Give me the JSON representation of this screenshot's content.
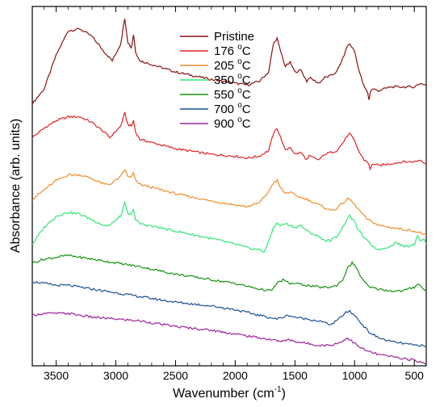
{
  "chart_data": {
    "type": "line",
    "xlabel": "Wavenumber (cm",
    "xlabel_sup": "-1",
    "xlabel_close": ")",
    "ylabel": "Absorbance (arb. units)",
    "xlim": [
      3700,
      400
    ],
    "x_reversed": true,
    "y_ticks_shown": false,
    "x_ticks": [
      3500,
      3000,
      2500,
      2000,
      1500,
      1000,
      500
    ],
    "x_tick_labels": [
      "3500",
      "3000",
      "2500",
      "2000",
      "1500",
      "1000",
      "500"
    ],
    "legend_position": "top-center",
    "grid": false,
    "series": [
      {
        "name": "Pristine",
        "name_sup": "",
        "color": "#8b1010",
        "offset": 6,
        "points": [
          [
            3700,
            -0.6
          ],
          [
            3600,
            -0.2
          ],
          [
            3500,
            0.7
          ],
          [
            3400,
            1.35
          ],
          [
            3300,
            1.4
          ],
          [
            3200,
            1.2
          ],
          [
            3100,
            0.8
          ],
          [
            3030,
            0.55
          ],
          [
            2960,
            1.0
          ],
          [
            2925,
            1.7
          ],
          [
            2900,
            1.05
          ],
          [
            2870,
            0.9
          ],
          [
            2852,
            1.25
          ],
          [
            2835,
            0.8
          ],
          [
            2800,
            0.55
          ],
          [
            2500,
            0.25
          ],
          [
            2200,
            0.05
          ],
          [
            2000,
            -0.05
          ],
          [
            1900,
            -0.1
          ],
          [
            1800,
            0.0
          ],
          [
            1720,
            0.25
          ],
          [
            1680,
            1.0
          ],
          [
            1650,
            1.15
          ],
          [
            1620,
            0.8
          ],
          [
            1580,
            0.4
          ],
          [
            1540,
            0.5
          ],
          [
            1500,
            0.25
          ],
          [
            1450,
            0.3
          ],
          [
            1400,
            0.0
          ],
          [
            1380,
            0.1
          ],
          [
            1300,
            -0.05
          ],
          [
            1250,
            0.1
          ],
          [
            1200,
            0.15
          ],
          [
            1150,
            0.25
          ],
          [
            1100,
            0.6
          ],
          [
            1060,
            0.95
          ],
          [
            1040,
            1.0
          ],
          [
            1000,
            0.8
          ],
          [
            960,
            0.25
          ],
          [
            920,
            -0.15
          ],
          [
            890,
            -0.3
          ],
          [
            880,
            -0.5
          ],
          [
            870,
            -0.3
          ],
          [
            850,
            -0.2
          ],
          [
            800,
            -0.25
          ],
          [
            700,
            -0.15
          ],
          [
            600,
            -0.15
          ],
          [
            500,
            -0.15
          ],
          [
            450,
            -0.05
          ],
          [
            400,
            -0.1
          ]
        ]
      },
      {
        "name": "176 ",
        "name_sup": "o",
        "name_after": "C",
        "color": "#e32222",
        "offset": 4.6,
        "points": [
          [
            3700,
            -0.1
          ],
          [
            3600,
            0.15
          ],
          [
            3500,
            0.35
          ],
          [
            3400,
            0.45
          ],
          [
            3300,
            0.45
          ],
          [
            3200,
            0.3
          ],
          [
            3100,
            0.05
          ],
          [
            3050,
            -0.1
          ],
          [
            2960,
            0.2
          ],
          [
            2925,
            0.55
          ],
          [
            2900,
            0.25
          ],
          [
            2870,
            0.2
          ],
          [
            2852,
            0.35
          ],
          [
            2835,
            0.05
          ],
          [
            2800,
            -0.15
          ],
          [
            2500,
            -0.4
          ],
          [
            2200,
            -0.55
          ],
          [
            2000,
            -0.6
          ],
          [
            1900,
            -0.65
          ],
          [
            1800,
            -0.6
          ],
          [
            1720,
            -0.45
          ],
          [
            1680,
            0.0
          ],
          [
            1650,
            0.15
          ],
          [
            1620,
            -0.1
          ],
          [
            1580,
            -0.45
          ],
          [
            1540,
            -0.35
          ],
          [
            1500,
            -0.55
          ],
          [
            1450,
            -0.5
          ],
          [
            1400,
            -0.7
          ],
          [
            1380,
            -0.6
          ],
          [
            1300,
            -0.7
          ],
          [
            1250,
            -0.55
          ],
          [
            1200,
            -0.5
          ],
          [
            1150,
            -0.45
          ],
          [
            1100,
            -0.25
          ],
          [
            1060,
            -0.05
          ],
          [
            1040,
            0.0
          ],
          [
            1000,
            -0.2
          ],
          [
            960,
            -0.5
          ],
          [
            920,
            -0.7
          ],
          [
            890,
            -0.75
          ],
          [
            870,
            -0.95
          ],
          [
            850,
            -0.8
          ],
          [
            800,
            -0.85
          ],
          [
            700,
            -0.8
          ],
          [
            600,
            -0.75
          ],
          [
            500,
            -0.75
          ],
          [
            450,
            -0.7
          ],
          [
            400,
            -0.8
          ]
        ]
      },
      {
        "name": "205 ",
        "name_sup": "o",
        "name_after": "C",
        "color": "#f28c28",
        "offset": 3.35,
        "points": [
          [
            3700,
            -0.5
          ],
          [
            3600,
            -0.25
          ],
          [
            3500,
            0.0
          ],
          [
            3400,
            0.15
          ],
          [
            3300,
            0.15
          ],
          [
            3200,
            0.05
          ],
          [
            3100,
            -0.1
          ],
          [
            3050,
            -0.1
          ],
          [
            2960,
            0.1
          ],
          [
            2925,
            0.3
          ],
          [
            2900,
            0.1
          ],
          [
            2870,
            0.1
          ],
          [
            2852,
            0.2
          ],
          [
            2835,
            0.0
          ],
          [
            2800,
            -0.1
          ],
          [
            2500,
            -0.35
          ],
          [
            2200,
            -0.55
          ],
          [
            2000,
            -0.65
          ],
          [
            1900,
            -0.7
          ],
          [
            1800,
            -0.6
          ],
          [
            1720,
            -0.3
          ],
          [
            1680,
            -0.05
          ],
          [
            1650,
            0.0
          ],
          [
            1620,
            -0.2
          ],
          [
            1580,
            -0.35
          ],
          [
            1540,
            -0.3
          ],
          [
            1500,
            -0.4
          ],
          [
            1450,
            -0.45
          ],
          [
            1400,
            -0.5
          ],
          [
            1300,
            -0.65
          ],
          [
            1200,
            -0.8
          ],
          [
            1150,
            -0.75
          ],
          [
            1100,
            -0.6
          ],
          [
            1060,
            -0.5
          ],
          [
            1040,
            -0.5
          ],
          [
            1000,
            -0.65
          ],
          [
            960,
            -0.8
          ],
          [
            920,
            -0.95
          ],
          [
            890,
            -1.05
          ],
          [
            850,
            -1.1
          ],
          [
            800,
            -1.2
          ],
          [
            700,
            -1.25
          ],
          [
            600,
            -1.3
          ],
          [
            500,
            -1.35
          ],
          [
            450,
            -1.4
          ],
          [
            400,
            -1.45
          ]
        ]
      },
      {
        "name": "350 ",
        "name_sup": "o",
        "name_after": "C",
        "color": "#2ee875",
        "offset": 2.2,
        "points": [
          [
            3700,
            -0.55
          ],
          [
            3600,
            -0.1
          ],
          [
            3500,
            0.2
          ],
          [
            3400,
            0.3
          ],
          [
            3300,
            0.25
          ],
          [
            3200,
            0.1
          ],
          [
            3100,
            -0.05
          ],
          [
            3050,
            -0.05
          ],
          [
            2960,
            0.2
          ],
          [
            2925,
            0.55
          ],
          [
            2900,
            0.25
          ],
          [
            2870,
            0.25
          ],
          [
            2852,
            0.4
          ],
          [
            2835,
            0.1
          ],
          [
            2800,
            0.0
          ],
          [
            2500,
            -0.2
          ],
          [
            2200,
            -0.4
          ],
          [
            2000,
            -0.55
          ],
          [
            1900,
            -0.65
          ],
          [
            1800,
            -0.7
          ],
          [
            1760,
            -0.75
          ],
          [
            1720,
            -0.5
          ],
          [
            1680,
            -0.1
          ],
          [
            1650,
            0.0
          ],
          [
            1620,
            -0.05
          ],
          [
            1580,
            0.0
          ],
          [
            1540,
            -0.05
          ],
          [
            1500,
            -0.1
          ],
          [
            1450,
            -0.05
          ],
          [
            1400,
            -0.2
          ],
          [
            1300,
            -0.35
          ],
          [
            1250,
            -0.45
          ],
          [
            1200,
            -0.45
          ],
          [
            1150,
            -0.35
          ],
          [
            1100,
            -0.1
          ],
          [
            1060,
            0.15
          ],
          [
            1040,
            0.2
          ],
          [
            1010,
            0.1
          ],
          [
            980,
            -0.1
          ],
          [
            940,
            -0.3
          ],
          [
            900,
            -0.45
          ],
          [
            850,
            -0.6
          ],
          [
            800,
            -0.7
          ],
          [
            700,
            -0.6
          ],
          [
            650,
            -0.5
          ],
          [
            600,
            -0.6
          ],
          [
            550,
            -0.6
          ],
          [
            500,
            -0.55
          ],
          [
            470,
            -0.3
          ],
          [
            450,
            -0.45
          ],
          [
            420,
            -0.4
          ],
          [
            400,
            -0.55
          ]
        ]
      },
      {
        "name": "550 ",
        "name_sup": "o",
        "name_after": "C",
        "color": "#17920e",
        "offset": 1.2,
        "points": [
          [
            3700,
            -0.05
          ],
          [
            3600,
            0.05
          ],
          [
            3500,
            0.1
          ],
          [
            3400,
            0.15
          ],
          [
            3300,
            0.1
          ],
          [
            3200,
            0.05
          ],
          [
            3000,
            -0.05
          ],
          [
            2800,
            -0.15
          ],
          [
            2500,
            -0.35
          ],
          [
            2200,
            -0.5
          ],
          [
            2000,
            -0.6
          ],
          [
            1800,
            -0.75
          ],
          [
            1700,
            -0.8
          ],
          [
            1650,
            -0.6
          ],
          [
            1600,
            -0.5
          ],
          [
            1550,
            -0.6
          ],
          [
            1500,
            -0.6
          ],
          [
            1400,
            -0.65
          ],
          [
            1300,
            -0.7
          ],
          [
            1200,
            -0.7
          ],
          [
            1150,
            -0.65
          ],
          [
            1100,
            -0.5
          ],
          [
            1060,
            -0.2
          ],
          [
            1020,
            -0.05
          ],
          [
            1000,
            -0.1
          ],
          [
            960,
            -0.35
          ],
          [
            920,
            -0.55
          ],
          [
            880,
            -0.7
          ],
          [
            800,
            -0.75
          ],
          [
            700,
            -0.8
          ],
          [
            600,
            -0.8
          ],
          [
            500,
            -0.7
          ],
          [
            470,
            -0.6
          ],
          [
            440,
            -0.7
          ],
          [
            400,
            -0.8
          ]
        ]
      },
      {
        "name": "700 ",
        "name_sup": "o",
        "name_after": "C",
        "color": "#1a4f9a",
        "offset": 0.25,
        "points": [
          [
            3700,
            0.4
          ],
          [
            3600,
            0.35
          ],
          [
            3500,
            0.3
          ],
          [
            3400,
            0.3
          ],
          [
            3300,
            0.25
          ],
          [
            3200,
            0.2
          ],
          [
            3000,
            0.1
          ],
          [
            2800,
            0.0
          ],
          [
            2500,
            -0.15
          ],
          [
            2200,
            -0.25
          ],
          [
            2000,
            -0.35
          ],
          [
            1800,
            -0.5
          ],
          [
            1650,
            -0.6
          ],
          [
            1600,
            -0.55
          ],
          [
            1550,
            -0.5
          ],
          [
            1500,
            -0.55
          ],
          [
            1400,
            -0.6
          ],
          [
            1300,
            -0.65
          ],
          [
            1200,
            -0.75
          ],
          [
            1150,
            -0.65
          ],
          [
            1100,
            -0.5
          ],
          [
            1060,
            -0.4
          ],
          [
            1040,
            -0.4
          ],
          [
            1000,
            -0.5
          ],
          [
            960,
            -0.65
          ],
          [
            920,
            -0.8
          ],
          [
            880,
            -0.95
          ],
          [
            800,
            -1.1
          ],
          [
            700,
            -1.2
          ],
          [
            600,
            -1.25
          ],
          [
            500,
            -1.3
          ],
          [
            450,
            -1.3
          ],
          [
            400,
            -1.35
          ]
        ]
      },
      {
        "name": "900 ",
        "name_sup": "o",
        "name_after": "C",
        "color": "#9b2398",
        "offset": -0.45,
        "points": [
          [
            3700,
            0.2
          ],
          [
            3600,
            0.25
          ],
          [
            3500,
            0.25
          ],
          [
            3400,
            0.25
          ],
          [
            3300,
            0.2
          ],
          [
            3200,
            0.15
          ],
          [
            3000,
            0.1
          ],
          [
            2800,
            0.05
          ],
          [
            2500,
            -0.1
          ],
          [
            2200,
            -0.2
          ],
          [
            2000,
            -0.3
          ],
          [
            1800,
            -0.4
          ],
          [
            1600,
            -0.5
          ],
          [
            1550,
            -0.45
          ],
          [
            1500,
            -0.5
          ],
          [
            1400,
            -0.55
          ],
          [
            1300,
            -0.6
          ],
          [
            1200,
            -0.6
          ],
          [
            1100,
            -0.5
          ],
          [
            1070,
            -0.4
          ],
          [
            1040,
            -0.45
          ],
          [
            1000,
            -0.55
          ],
          [
            960,
            -0.65
          ],
          [
            900,
            -0.75
          ],
          [
            800,
            -0.85
          ],
          [
            700,
            -0.9
          ],
          [
            600,
            -0.95
          ],
          [
            500,
            -1.0
          ],
          [
            450,
            -1.05
          ],
          [
            400,
            -1.1
          ]
        ]
      }
    ]
  }
}
